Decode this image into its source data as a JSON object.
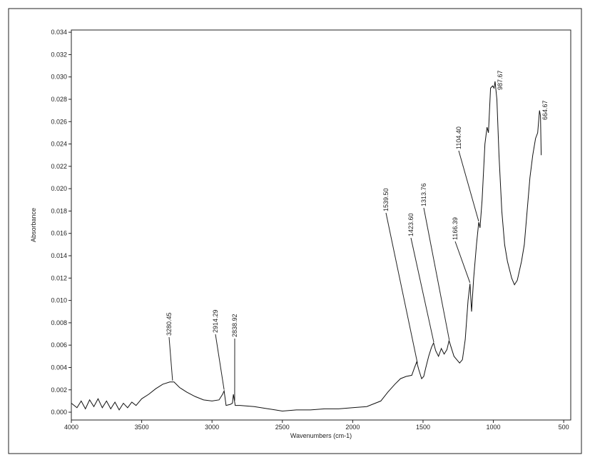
{
  "chart_data": {
    "type": "line",
    "xlabel": "Wavenumbers (cm-1)",
    "ylabel": "Absorbance",
    "xlim": [
      4000,
      450
    ],
    "ylim": [
      -0.0007,
      0.0342
    ],
    "xticks": [
      4000,
      3500,
      3000,
      2500,
      2000,
      1500,
      1000,
      500
    ],
    "yticks": [
      {
        "value": 0,
        "label": "0.000"
      },
      {
        "value": 0.002,
        "label": "0.002"
      },
      {
        "value": 0.004,
        "label": "0.004"
      },
      {
        "value": 0.006,
        "label": "0.006"
      },
      {
        "value": 0.008,
        "label": "0.008"
      },
      {
        "value": 0.01,
        "label": "0.010"
      },
      {
        "value": 0.012,
        "label": "0.012"
      },
      {
        "value": 0.014,
        "label": "0.014"
      },
      {
        "value": 0.016,
        "label": "0.016"
      },
      {
        "value": 0.018,
        "label": "0.018"
      },
      {
        "value": 0.02,
        "label": "0.020"
      },
      {
        "value": 0.022,
        "label": "0.022"
      },
      {
        "value": 0.024,
        "label": "0.024"
      },
      {
        "value": 0.026,
        "label": "0.026"
      },
      {
        "value": 0.028,
        "label": "0.028"
      },
      {
        "value": 0.03,
        "label": "0.030"
      },
      {
        "value": 0.032,
        "label": "0.032"
      },
      {
        "value": 0.034,
        "label": "0.034"
      }
    ],
    "color": "#111111",
    "x": [
      4000,
      3960,
      3930,
      3900,
      3870,
      3840,
      3810,
      3780,
      3750,
      3720,
      3690,
      3660,
      3630,
      3600,
      3570,
      3540,
      3500,
      3450,
      3400,
      3350,
      3300,
      3270,
      3230,
      3180,
      3120,
      3060,
      3000,
      2950,
      2925,
      2914,
      2900,
      2870,
      2855,
      2848,
      2835,
      2800,
      2700,
      2600,
      2550,
      2500,
      2400,
      2300,
      2200,
      2100,
      2000,
      1900,
      1800,
      1750,
      1700,
      1660,
      1620,
      1580,
      1560,
      1545,
      1530,
      1510,
      1495,
      1480,
      1460,
      1440,
      1425,
      1410,
      1390,
      1370,
      1350,
      1330,
      1315,
      1300,
      1280,
      1260,
      1240,
      1220,
      1200,
      1180,
      1166,
      1155,
      1140,
      1120,
      1104,
      1095,
      1080,
      1060,
      1045,
      1035,
      1020,
      1005,
      995,
      988,
      975,
      960,
      940,
      920,
      900,
      870,
      850,
      830,
      800,
      780,
      760,
      740,
      720,
      700,
      685,
      672,
      665,
      660
    ],
    "values": [
      0.0008,
      0.0004,
      0.001,
      0.0003,
      0.0011,
      0.0005,
      0.0012,
      0.0004,
      0.001,
      0.0003,
      0.0009,
      0.0002,
      0.0008,
      0.0004,
      0.0009,
      0.0006,
      0.0012,
      0.0016,
      0.0021,
      0.0025,
      0.0027,
      0.0027,
      0.0022,
      0.0018,
      0.0014,
      0.0011,
      0.001,
      0.0011,
      0.0016,
      0.0019,
      0.0006,
      0.0007,
      0.0008,
      0.0016,
      0.0006,
      0.0006,
      0.0005,
      0.0003,
      0.0002,
      0.0001,
      0.0002,
      0.0002,
      0.0003,
      0.0003,
      0.0004,
      0.0005,
      0.001,
      0.0018,
      0.0025,
      0.003,
      0.0032,
      0.0033,
      0.004,
      0.0045,
      0.0038,
      0.003,
      0.0032,
      0.004,
      0.005,
      0.0058,
      0.0062,
      0.0055,
      0.005,
      0.0057,
      0.0052,
      0.0056,
      0.0064,
      0.0058,
      0.005,
      0.0047,
      0.0044,
      0.0047,
      0.0065,
      0.01,
      0.0115,
      0.009,
      0.012,
      0.015,
      0.017,
      0.0165,
      0.019,
      0.024,
      0.0255,
      0.025,
      0.029,
      0.0292,
      0.029,
      0.0296,
      0.028,
      0.023,
      0.018,
      0.015,
      0.0135,
      0.012,
      0.0114,
      0.0118,
      0.0135,
      0.015,
      0.018,
      0.021,
      0.023,
      0.0245,
      0.025,
      0.027,
      0.0265,
      0.023
    ],
    "annotations": [
      {
        "value": 3280.45,
        "label": "3280.45"
      },
      {
        "value": 2914.29,
        "label": "2914.29"
      },
      {
        "value": 2838.92,
        "label": "2838.92"
      },
      {
        "value": 1539.5,
        "label": "1539.50"
      },
      {
        "value": 1423.6,
        "label": "1423.60"
      },
      {
        "value": 1313.76,
        "label": "1313.76"
      },
      {
        "value": 1166.39,
        "label": "1166.39"
      },
      {
        "value": 1104.4,
        "label": "1104.40"
      },
      {
        "value": 987.67,
        "label": "987.67"
      },
      {
        "value": 664.67,
        "label": "664.67"
      }
    ]
  }
}
